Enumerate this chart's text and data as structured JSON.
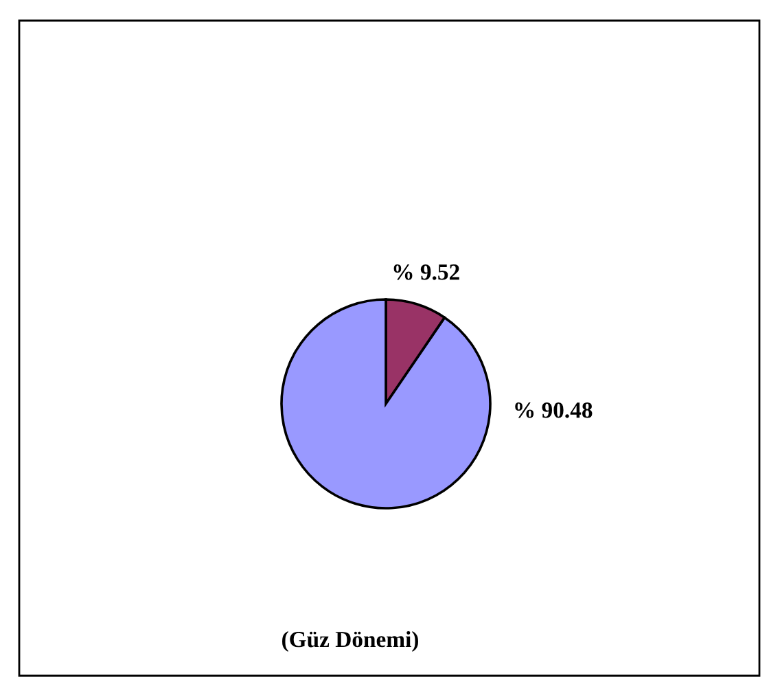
{
  "chart_data": {
    "type": "pie",
    "categories": [
      null,
      null
    ],
    "values": [
      9.52,
      90.48
    ],
    "colors": [
      "#993366",
      "#9999ff"
    ],
    "value_labels": [
      "% 9.52",
      "% 90.48"
    ],
    "annotations": [
      "(Güz Dönemi)"
    ]
  }
}
